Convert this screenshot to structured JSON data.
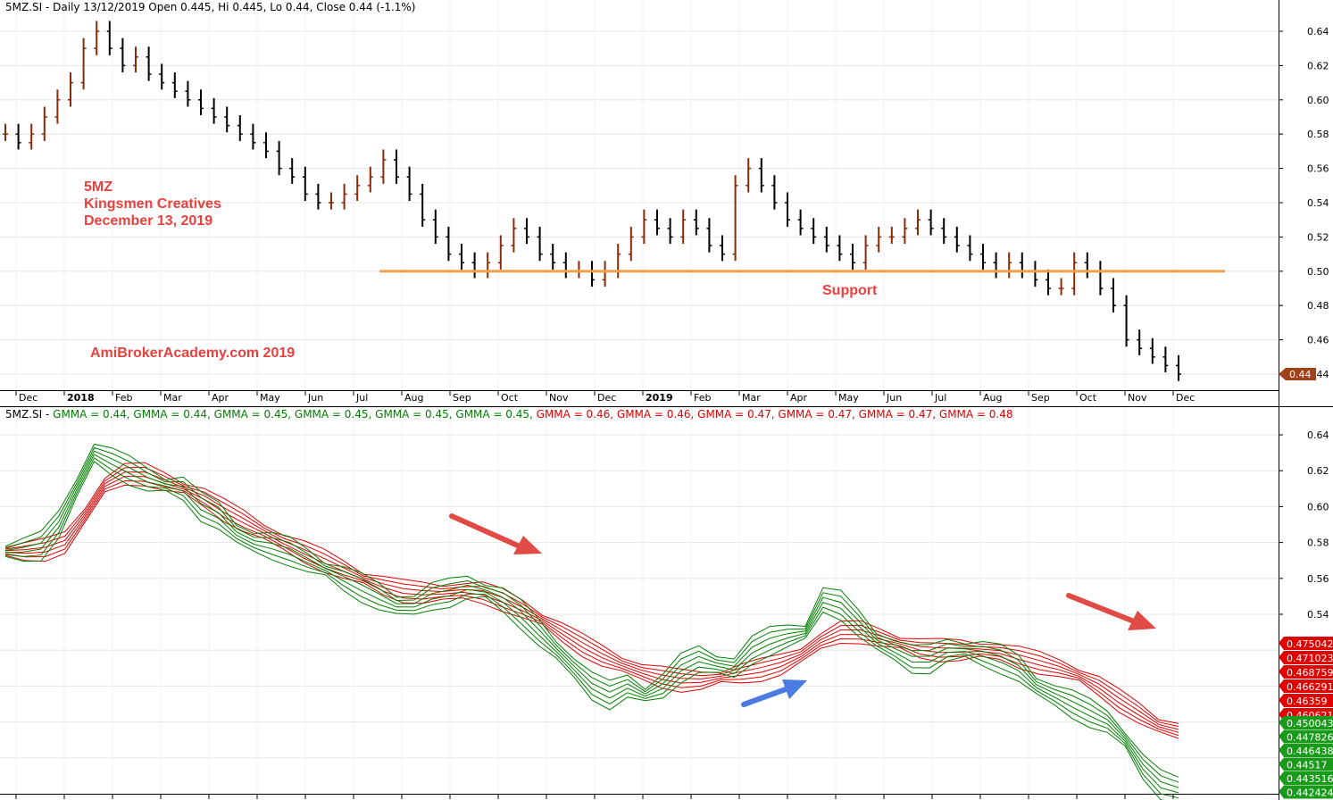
{
  "price_panel": {
    "header": "5MZ.SI - Daily 13/12/2019 Open 0.445, Hi 0.445, Lo 0.44, Close 0.44 (-1.1%)",
    "annotations": [
      "5MZ",
      "Kingsmen Creatives",
      "December 13, 2019",
      "AmiBrokerAcademy.com   2019",
      "Support"
    ],
    "last_price_badge": "0.44",
    "support_level": 0.5,
    "y_ticks": [
      "0.64",
      "0.62",
      "0.60",
      "0.58",
      "0.56",
      "0.54",
      "0.52",
      "0.50",
      "0.48",
      "0.46",
      "0.44"
    ],
    "x_ticks": [
      "Dec",
      "2018",
      "Feb",
      "Mar",
      "Apr",
      "May",
      "Jun",
      "Jul",
      "Aug",
      "Sep",
      "Oct",
      "Nov",
      "Dec",
      "2019",
      "Feb",
      "Mar",
      "Apr",
      "May",
      "Jun",
      "Jul",
      "Aug",
      "Sep",
      "Oct",
      "Nov",
      "Dec"
    ]
  },
  "indicator_panel": {
    "header_prefix": "5MZ.SI - ",
    "header_items": [
      {
        "text": "GMMA = 0.44, ",
        "color": "#008000"
      },
      {
        "text": "GMMA = 0.44, ",
        "color": "#008000"
      },
      {
        "text": "GMMA = 0.45, ",
        "color": "#008000"
      },
      {
        "text": "GMMA = 0.45, ",
        "color": "#008000"
      },
      {
        "text": "GMMA = 0.45, ",
        "color": "#008000"
      },
      {
        "text": "GMMA = 0.45, ",
        "color": "#008000"
      },
      {
        "text": "GMMA = 0.46, ",
        "color": "#e00000"
      },
      {
        "text": "GMMA = 0.46, ",
        "color": "#e00000"
      },
      {
        "text": "GMMA = 0.47, ",
        "color": "#e00000"
      },
      {
        "text": "GMMA = 0.47, ",
        "color": "#e00000"
      },
      {
        "text": "GMMA = 0.47, ",
        "color": "#e00000"
      },
      {
        "text": "GMMA = 0.48",
        "color": "#e00000"
      }
    ],
    "y_ticks": [
      "0.64",
      "0.62",
      "0.60",
      "0.58",
      "0.56",
      "0.54"
    ],
    "red_badges": [
      "0.475042",
      "0.471023",
      "0.468759",
      "0.466291",
      "0.46359",
      "0.460621"
    ],
    "green_badges": [
      "0.450043",
      "0.447826",
      "0.446438",
      "0.44517",
      "0.443516",
      "0.442424"
    ]
  },
  "chart_data": {
    "type": "line",
    "y_range": [
      0.43,
      0.65
    ],
    "series": [
      {
        "name": "5MZ.SI",
        "color": "#000000",
        "values": [
          0.58,
          0.575,
          0.58,
          0.59,
          0.6,
          0.61,
          0.63,
          0.64,
          0.63,
          0.62,
          0.625,
          0.615,
          0.61,
          0.605,
          0.6,
          0.595,
          0.59,
          0.585,
          0.58,
          0.575,
          0.57,
          0.56,
          0.555,
          0.545,
          0.54,
          0.54,
          0.545,
          0.55,
          0.555,
          0.565,
          0.555,
          0.545,
          0.53,
          0.52,
          0.51,
          0.505,
          0.5,
          0.505,
          0.515,
          0.525,
          0.52,
          0.51,
          0.505,
          0.5,
          0.5,
          0.495,
          0.5,
          0.51,
          0.52,
          0.53,
          0.525,
          0.52,
          0.53,
          0.525,
          0.515,
          0.51,
          0.55,
          0.56,
          0.55,
          0.54,
          0.53,
          0.525,
          0.52,
          0.515,
          0.51,
          0.505,
          0.515,
          0.52,
          0.52,
          0.525,
          0.53,
          0.525,
          0.52,
          0.515,
          0.51,
          0.505,
          0.5,
          0.505,
          0.5,
          0.495,
          0.49,
          0.49,
          0.505,
          0.5,
          0.49,
          0.48,
          0.46,
          0.455,
          0.45,
          0.445,
          0.44
        ]
      },
      {
        "name": "GMMA short",
        "color": "#008000",
        "values": [
          0.575,
          0.576,
          0.578,
          0.59,
          0.61,
          0.63,
          0.625,
          0.62,
          0.615,
          0.612,
          0.61,
          0.6,
          0.595,
          0.585,
          0.58,
          0.578,
          0.575,
          0.57,
          0.565,
          0.56,
          0.555,
          0.55,
          0.545,
          0.545,
          0.55,
          0.552,
          0.555,
          0.553,
          0.548,
          0.54,
          0.53,
          0.52,
          0.51,
          0.5,
          0.495,
          0.5,
          0.495,
          0.5,
          0.51,
          0.515,
          0.512,
          0.51,
          0.52,
          0.525,
          0.528,
          0.53,
          0.548,
          0.545,
          0.535,
          0.525,
          0.52,
          0.515,
          0.515,
          0.52,
          0.52,
          0.518,
          0.515,
          0.51,
          0.5,
          0.495,
          0.49,
          0.485,
          0.48,
          0.47,
          0.455,
          0.445,
          0.442
        ]
      },
      {
        "name": "GMMA long",
        "color": "#e00000",
        "values": [
          0.575,
          0.575,
          0.576,
          0.58,
          0.595,
          0.612,
          0.618,
          0.618,
          0.614,
          0.61,
          0.605,
          0.598,
          0.592,
          0.586,
          0.58,
          0.575,
          0.57,
          0.565,
          0.56,
          0.556,
          0.553,
          0.552,
          0.552,
          0.553,
          0.552,
          0.548,
          0.543,
          0.537,
          0.53,
          0.523,
          0.517,
          0.512,
          0.508,
          0.505,
          0.503,
          0.503,
          0.505,
          0.507,
          0.509,
          0.512,
          0.517,
          0.525,
          0.53,
          0.53,
          0.527,
          0.524,
          0.521,
          0.52,
          0.52,
          0.52,
          0.519,
          0.516,
          0.513,
          0.51,
          0.506,
          0.5,
          0.492,
          0.485,
          0.478,
          0.475
        ]
      }
    ]
  }
}
